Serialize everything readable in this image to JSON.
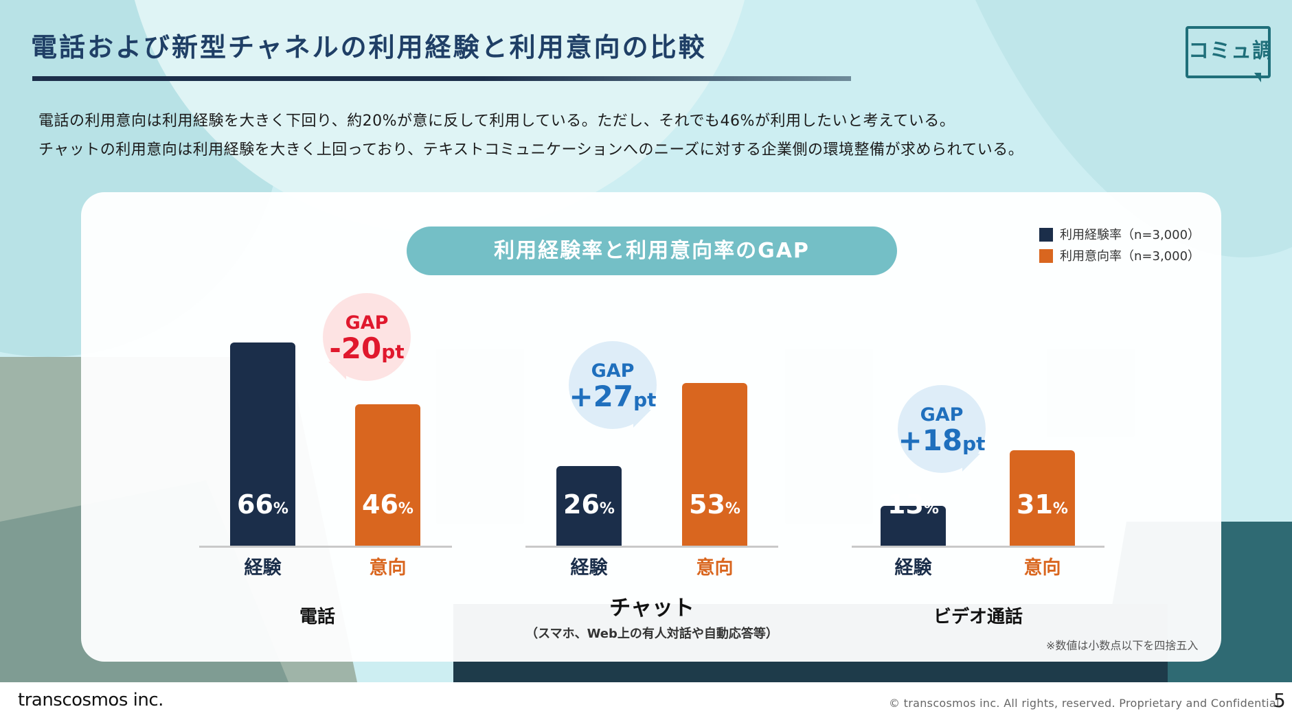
{
  "title": "電話および新型チャネルの利用経験と利用意向の比較",
  "logo_text": "コミュ調",
  "description": [
    "電話の利用意向は利用経験を大きく下回り、約20%が意に反して利用している。ただし、それでも46%が利用したいと考えている。",
    "チャットの利用意向は利用経験を大きく上回っており、テキストコミュニケーションへのニーズに対する企業側の環境整備が求められている。"
  ],
  "colors": {
    "experience": "#1b2e4a",
    "intention": "#d9661f",
    "gap_negative": "#e0182d",
    "gap_positive": "#1f6fbd",
    "gap_negative_bg": "#fde3e3",
    "gap_positive_bg": "#deedf8",
    "experience_label": "#1b2e4a",
    "intention_label": "#d9661f"
  },
  "chart_data": {
    "type": "bar",
    "title": "利用経験率と利用意向率のGAP",
    "legend_position": "top-right",
    "unit": "%",
    "ylim": [
      0,
      70
    ],
    "series": [
      {
        "name": "利用経験率（n=3,000）",
        "short_label": "経験",
        "values": [
          66,
          26,
          13
        ]
      },
      {
        "name": "利用意向率（n=3,000）",
        "short_label": "意向",
        "values": [
          46,
          53,
          31
        ]
      }
    ],
    "categories": [
      "電話",
      "チャット",
      "ビデオ通話"
    ],
    "category_subtitles": [
      "",
      "（スマホ、Web上の有人対話や自動応答等）",
      ""
    ],
    "gaps": [
      {
        "label": "GAP",
        "value": "-20",
        "unit": "pt"
      },
      {
        "label": "GAP",
        "value": "+27",
        "unit": "pt"
      },
      {
        "label": "GAP",
        "value": "+18",
        "unit": "pt"
      }
    ],
    "note": "※数値は小数点以下を四捨五入"
  },
  "footer": {
    "brand": "transcosmos inc.",
    "copyright": "© transcosmos inc. All rights, reserved. Proprietary and Confidential",
    "page_number": "5"
  }
}
